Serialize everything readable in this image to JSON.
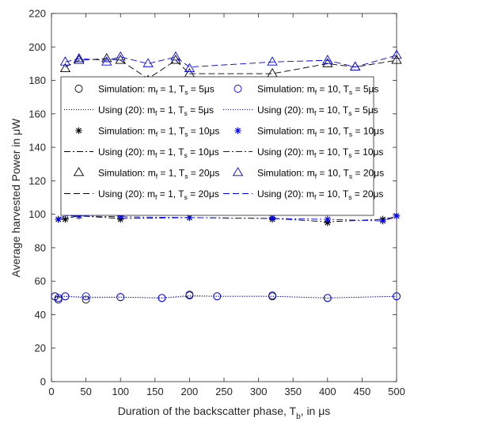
{
  "chart_data": {
    "type": "line",
    "xlabel": "Duration of the backscatter phase, T",
    "xlabel_sub": "b",
    "xlabel_suffix": ", in μs",
    "ylabel": "Average harvested Power in μW",
    "xlim": [
      0,
      500
    ],
    "ylim": [
      0,
      220
    ],
    "xticks": [
      "0",
      "50",
      "100",
      "150",
      "200",
      "250",
      "300",
      "350",
      "400",
      "450",
      "500"
    ],
    "yticks": [
      "0",
      "20",
      "40",
      "60",
      "80",
      "100",
      "120",
      "140",
      "160",
      "180",
      "200",
      "220"
    ],
    "grid": false,
    "legend_placement": "upper-center",
    "colors": {
      "black": "#000000",
      "blue": "#0000ff"
    },
    "series": [
      {
        "name": "Simulation: m_f = 1, T_s = 5μs",
        "legend": [
          "Simulation: m",
          "f",
          " = 1, T",
          "s",
          " = 5μs"
        ],
        "kind": "simulation",
        "color": "black",
        "marker": "circle",
        "x": [
          5,
          10,
          20,
          50,
          100,
          160,
          200,
          240,
          320,
          400,
          500
        ],
        "y": [
          51,
          49,
          51,
          49,
          50.5,
          50,
          51.5,
          51,
          51,
          50,
          51
        ]
      },
      {
        "name": "Using (20): m_f = 1, T_s = 5μs",
        "legend": [
          "Using (20): m",
          "f",
          " = 1, T",
          "s",
          " = 5μs"
        ],
        "kind": "analytical",
        "color": "black",
        "dash": "1,2",
        "x": [
          5,
          10,
          20,
          50,
          100,
          160,
          200,
          240,
          320,
          400,
          500
        ],
        "y": [
          51,
          50,
          51,
          50,
          50.5,
          50,
          51,
          51,
          51,
          50,
          51
        ]
      },
      {
        "name": "Simulation: m_f = 10, T_s = 5μs",
        "legend": [
          "Simulation: m",
          "f",
          " = 10, T",
          "s",
          " = 5μs"
        ],
        "kind": "simulation",
        "color": "blue",
        "marker": "circle",
        "x": [
          5,
          10,
          20,
          50,
          100,
          160,
          200,
          240,
          320,
          400,
          500
        ],
        "y": [
          51,
          50,
          51,
          51,
          50.5,
          50,
          52,
          51,
          51.5,
          50,
          51
        ]
      },
      {
        "name": "Using (20): m_f = 10, T_s = 5μs",
        "legend": [
          "Using (20): m",
          "f",
          " = 10, T",
          "s",
          " = 5μs"
        ],
        "kind": "analytical",
        "color": "blue",
        "dash": "1,2",
        "x": [
          5,
          10,
          20,
          50,
          100,
          160,
          200,
          240,
          320,
          400,
          500
        ],
        "y": [
          51,
          50.5,
          51,
          50.5,
          50.5,
          50,
          51.5,
          51,
          51,
          50,
          51
        ]
      },
      {
        "name": "Simulation: m_f = 1, T_s = 10μs",
        "legend": [
          "Simulation: m",
          "f",
          " = 1, T",
          "s",
          " = 10μs"
        ],
        "kind": "simulation",
        "color": "black",
        "marker": "star",
        "x": [
          10,
          20,
          40,
          100,
          200,
          320,
          400,
          480,
          500
        ],
        "y": [
          97,
          97,
          99,
          97,
          98,
          97,
          95,
          97,
          99
        ]
      },
      {
        "name": "Using (20): m_f = 1, T_s = 10μs",
        "legend": [
          "Using (20): m",
          "f",
          " = 1,  T",
          "s",
          " = 10μs"
        ],
        "kind": "analytical",
        "color": "black",
        "dash": "8,3,2,3",
        "x": [
          10,
          20,
          40,
          100,
          200,
          320,
          400,
          480,
          500
        ],
        "y": [
          97,
          97.5,
          99,
          97.5,
          98,
          97.5,
          95.5,
          97,
          98.5
        ]
      },
      {
        "name": "Simulation: m_f = 10, T_s = 10μs",
        "legend": [
          "Simulation: m",
          "f",
          " = 10, T",
          "s",
          " = 10μs"
        ],
        "kind": "simulation",
        "color": "blue",
        "marker": "star",
        "x": [
          10,
          20,
          40,
          100,
          200,
          320,
          400,
          480,
          500
        ],
        "y": [
          97,
          101,
          99,
          99,
          98,
          98,
          97,
          96,
          99
        ]
      },
      {
        "name": "Using (20): m_f = 10, T_s = 10μs",
        "legend": [
          "Using (20): m",
          "f",
          " = 10, T",
          "s",
          " = 10μs"
        ],
        "kind": "analytical",
        "color": "blue",
        "dash": "8,3,2,3",
        "x": [
          10,
          20,
          40,
          100,
          200,
          320,
          400,
          480,
          500
        ],
        "y": [
          97.5,
          99,
          99,
          98.5,
          98,
          97.5,
          97,
          96,
          98.5
        ]
      },
      {
        "name": "Simulation: m_f = 1, T_s = 20μs",
        "legend": [
          "Simulation: m",
          "f",
          " = 1, T",
          "s",
          " = 20μs"
        ],
        "kind": "simulation",
        "color": "black",
        "marker": "triangle",
        "x": [
          20,
          40,
          80,
          100,
          140,
          180,
          200,
          320,
          400,
          440,
          500
        ],
        "y": [
          187,
          192,
          193,
          192,
          180,
          192,
          184,
          184,
          190,
          188,
          192
        ]
      },
      {
        "name": "Using (20): m_f = 1, T_s = 20μs",
        "legend": [
          "Using (20): m",
          "f",
          " = 1,  T",
          "s",
          " = 20μs"
        ],
        "kind": "analytical",
        "color": "black",
        "dash": "8,4",
        "x": [
          20,
          40,
          80,
          100,
          140,
          180,
          200,
          320,
          400,
          440,
          500
        ],
        "y": [
          188,
          192,
          193,
          192,
          181,
          192,
          184,
          184,
          190,
          188,
          192
        ]
      },
      {
        "name": "Simulation: m_f = 10, T_s = 20μs",
        "legend": [
          "Simulation: m",
          "f",
          " = 10, T",
          "s",
          " = 20μs"
        ],
        "kind": "simulation",
        "color": "blue",
        "marker": "triangle",
        "x": [
          20,
          40,
          80,
          100,
          140,
          180,
          200,
          320,
          400,
          440,
          500
        ],
        "y": [
          191,
          193,
          191,
          194,
          190,
          194,
          187,
          191,
          192,
          188,
          195
        ]
      },
      {
        "name": "Using (20): m_f = 10, T_s = 20μs",
        "legend": [
          "Using (20): m",
          "f",
          " = 10, T",
          "s",
          " = 20μs"
        ],
        "kind": "analytical",
        "color": "blue",
        "dash": "8,4",
        "x": [
          20,
          40,
          80,
          100,
          140,
          180,
          200,
          320,
          400,
          440,
          500
        ],
        "y": [
          191,
          193,
          192,
          194,
          190,
          194,
          188,
          191,
          192,
          188,
          195
        ]
      }
    ]
  }
}
